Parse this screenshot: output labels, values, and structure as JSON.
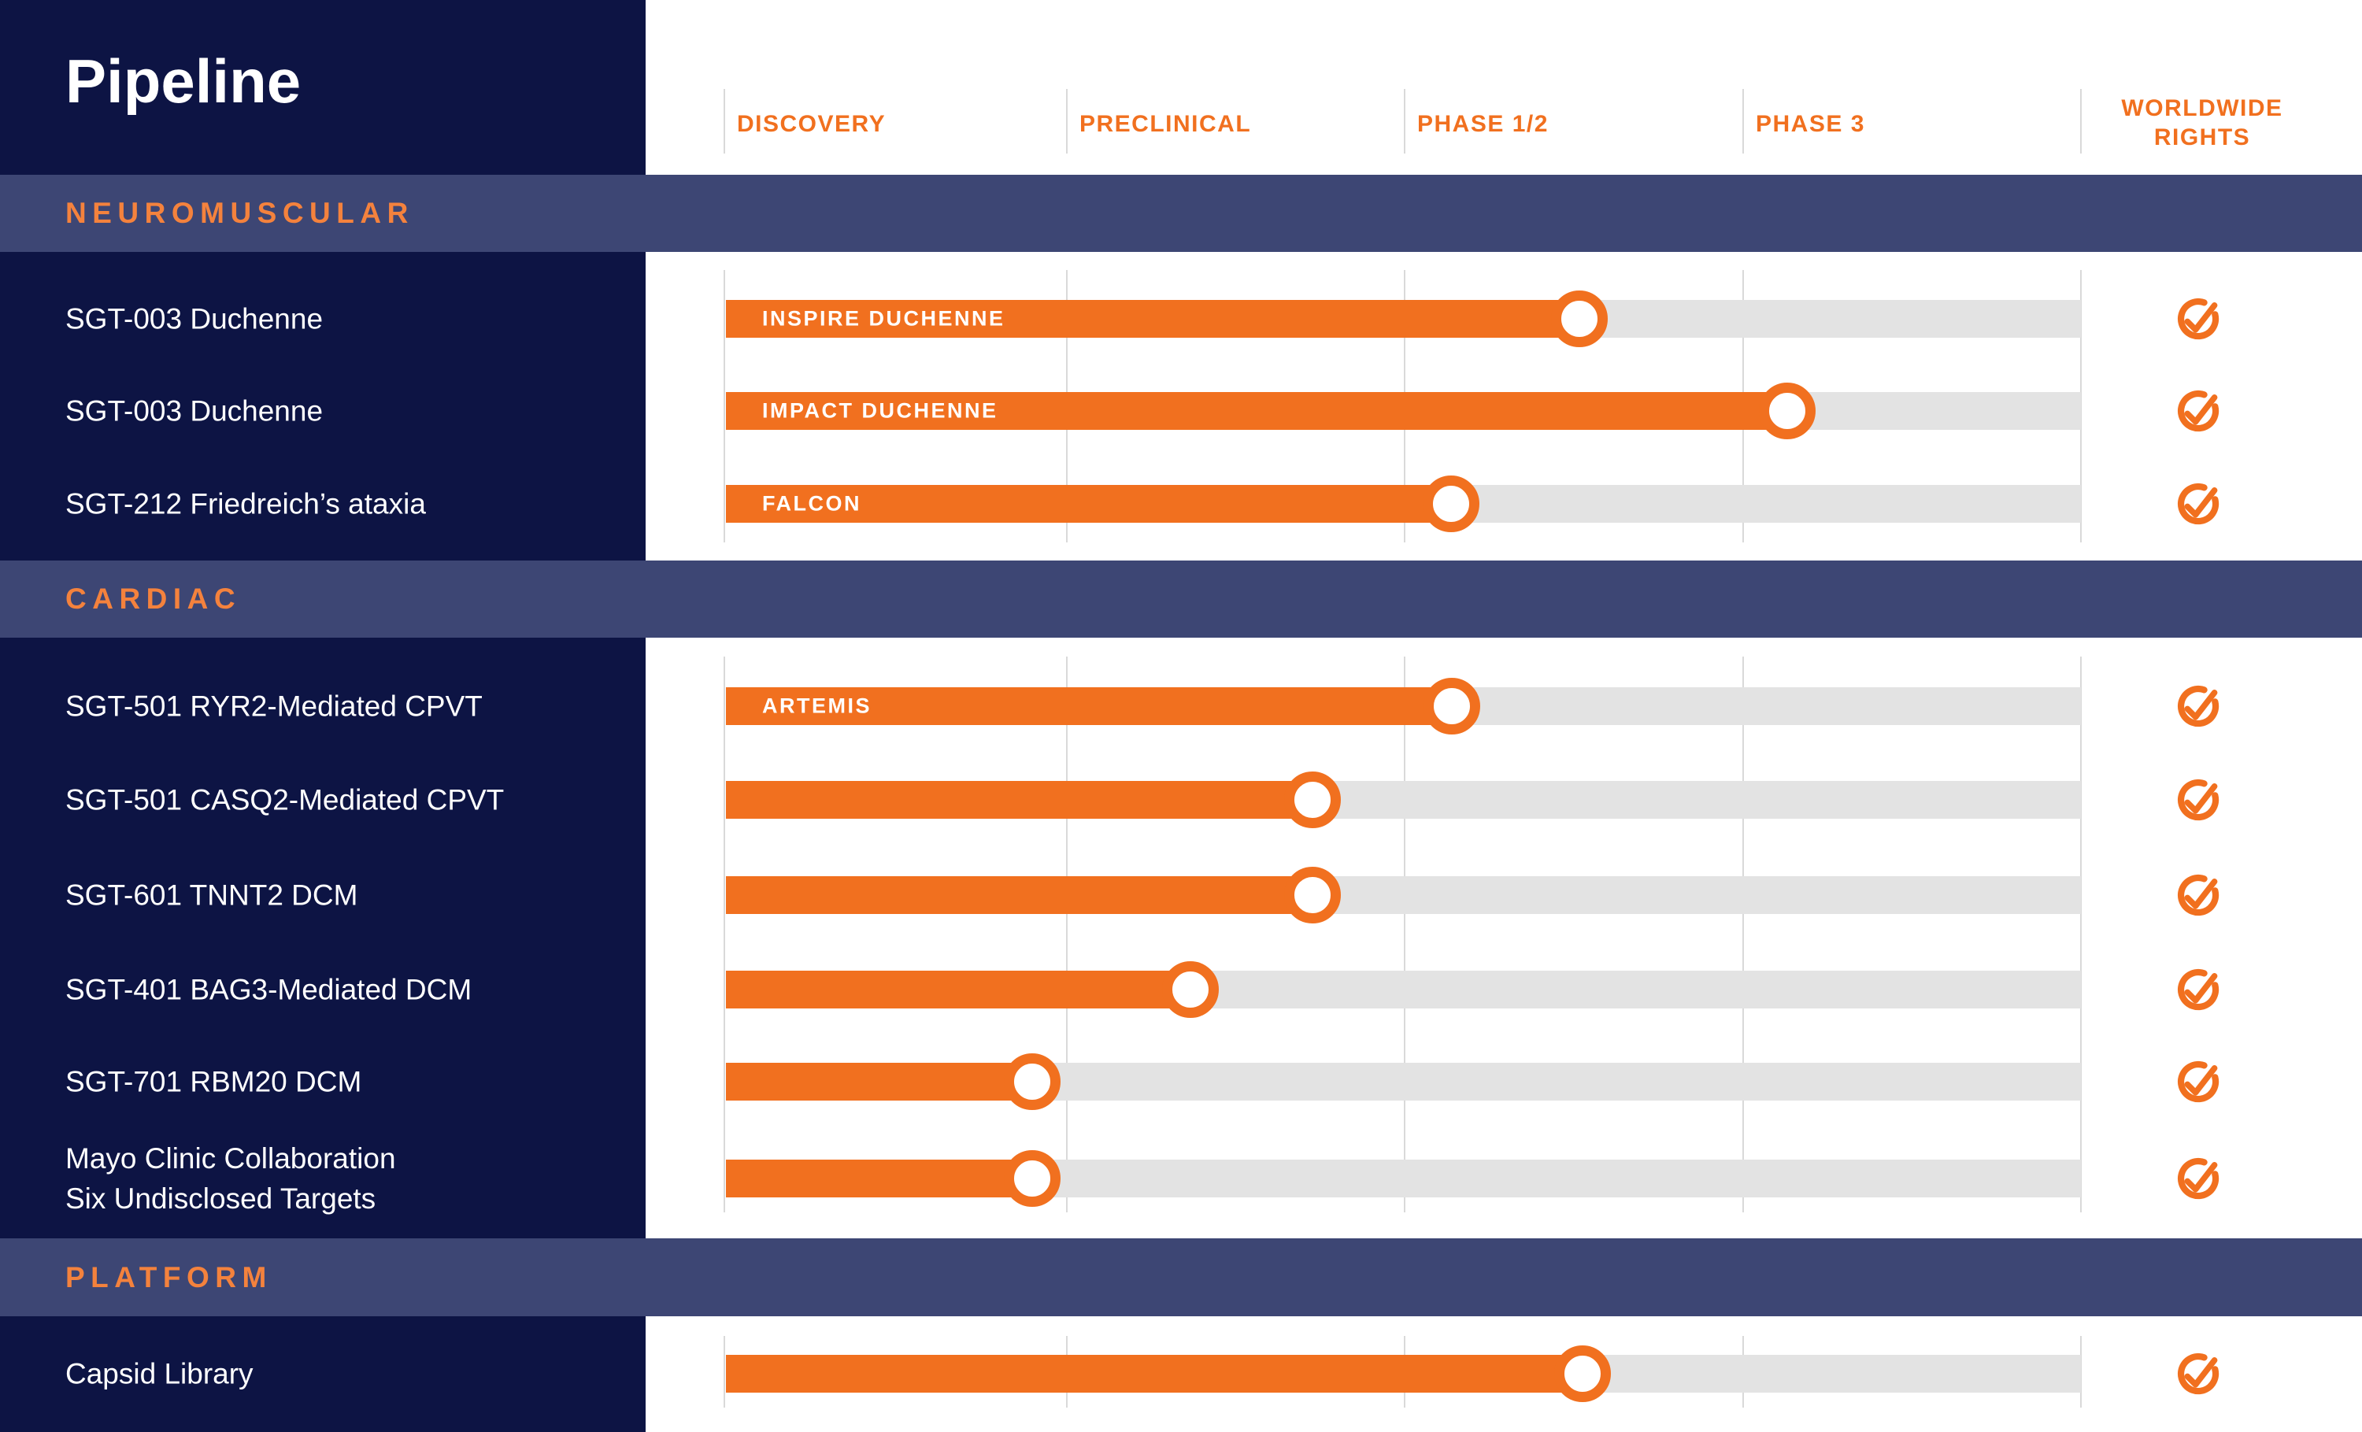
{
  "title": "Pipeline",
  "columns": {
    "discovery": "DISCOVERY",
    "preclinical": "PRECLINICAL",
    "phase12": "PHASE 1/2",
    "phase3": "PHASE 3",
    "worldwide_line1": "WORLDWIDE",
    "worldwide_line2": "RIGHTS"
  },
  "colors": {
    "orange": "#F1701F",
    "section_title_orange": "#F4823D",
    "navy": "#0D1444",
    "slate_band": "#3D4674",
    "track_gray": "#E3E3E3",
    "divider_gray": "#D9D9D9",
    "white": "#FFFFFF"
  },
  "chart_data": {
    "type": "bar",
    "title": "Pipeline",
    "stages": [
      "DISCOVERY",
      "PRECLINICAL",
      "PHASE 1/2",
      "PHASE 3"
    ],
    "rights_column": "WORLDWIDE RIGHTS",
    "sections": [
      {
        "name": "NEUROMUSCULAR",
        "rows": [
          {
            "program": "SGT-003 Duchenne",
            "trial": "INSPIRE DUCHENNE",
            "progress": 0.63,
            "stage": "Phase 1/2",
            "worldwide_rights": true
          },
          {
            "program": "SGT-003 Duchenne",
            "trial": "IMPACT DUCHENNE",
            "progress": 0.783,
            "stage": "Phase 3",
            "worldwide_rights": true
          },
          {
            "program": "SGT-212 Friedreich’s ataxia",
            "trial": "FALCON",
            "progress": 0.535,
            "stage": "Phase 1/2",
            "worldwide_rights": true
          }
        ]
      },
      {
        "name": "CARDIAC",
        "rows": [
          {
            "program": "SGT-501 RYR2-Mediated CPVT",
            "trial": "ARTEMIS",
            "progress": 0.536,
            "stage": "Phase 1/2",
            "worldwide_rights": true
          },
          {
            "program": "SGT-501 CASQ2-Mediated CPVT",
            "trial": "",
            "progress": 0.433,
            "stage": "Preclinical",
            "worldwide_rights": true
          },
          {
            "program": "SGT-601 TNNT2 DCM",
            "trial": "",
            "progress": 0.433,
            "stage": "Preclinical",
            "worldwide_rights": true
          },
          {
            "program": "SGT-401 BAG3-Mediated DCM",
            "trial": "",
            "progress": 0.343,
            "stage": "Preclinical",
            "worldwide_rights": true
          },
          {
            "program": "SGT-701 RBM20 DCM",
            "trial": "",
            "progress": 0.226,
            "stage": "Discovery",
            "worldwide_rights": true
          },
          {
            "program": "Mayo Clinic Collaboration",
            "program_line2": "Six Undisclosed Targets",
            "trial": "",
            "progress": 0.226,
            "stage": "Discovery",
            "worldwide_rights": true
          }
        ]
      },
      {
        "name": "PLATFORM",
        "rows": [
          {
            "program": "Capsid Library",
            "trial": "",
            "progress": 0.632,
            "stage": "Phase 1/2",
            "worldwide_rights": true
          }
        ]
      }
    ]
  }
}
